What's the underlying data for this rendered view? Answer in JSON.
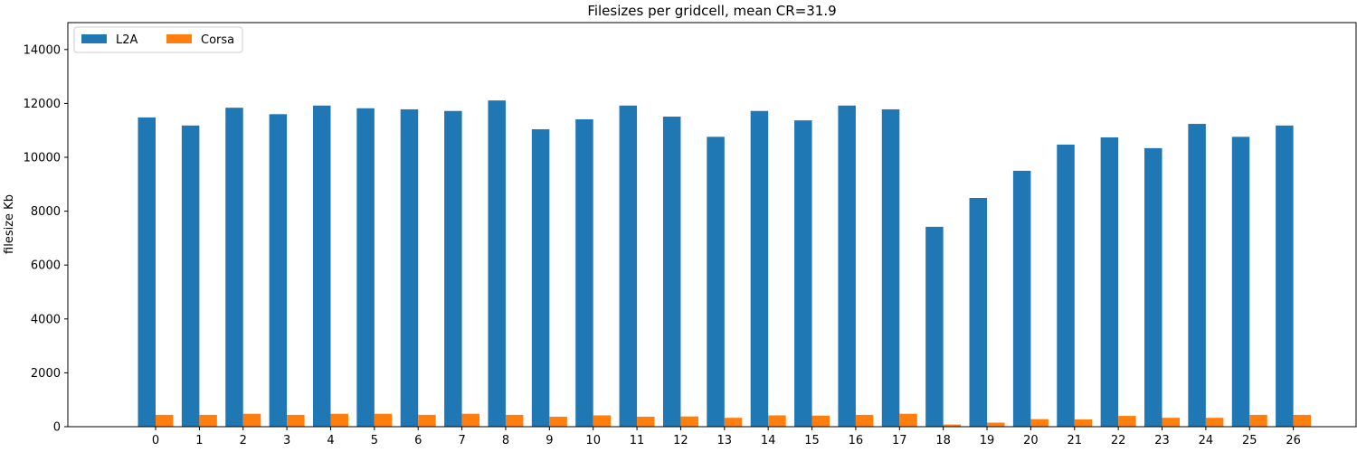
{
  "chart_data": {
    "type": "bar",
    "title": "Filesizes per gridcell, mean CR=31.9",
    "xlabel": "",
    "ylabel": "filesize Kb",
    "ylim": [
      0,
      15000
    ],
    "yticks": [
      0,
      2000,
      4000,
      6000,
      8000,
      10000,
      12000,
      14000
    ],
    "categories": [
      "0",
      "1",
      "2",
      "3",
      "4",
      "5",
      "6",
      "7",
      "8",
      "9",
      "10",
      "11",
      "12",
      "13",
      "14",
      "15",
      "16",
      "17",
      "18",
      "19",
      "20",
      "21",
      "22",
      "23",
      "24",
      "25",
      "26"
    ],
    "series": [
      {
        "name": "L2A",
        "color": "#1f77b4",
        "values": [
          11480,
          11180,
          11840,
          11600,
          11920,
          11820,
          11780,
          11720,
          12110,
          11040,
          11410,
          11920,
          11510,
          10760,
          11720,
          11370,
          11920,
          11780,
          7420,
          8490,
          9500,
          10470,
          10740,
          10340,
          11240,
          10760,
          11180
        ]
      },
      {
        "name": "Corsa",
        "color": "#ff7f0e",
        "values": [
          440,
          440,
          480,
          440,
          480,
          480,
          440,
          480,
          440,
          370,
          420,
          370,
          380,
          330,
          420,
          410,
          440,
          480,
          80,
          150,
          280,
          270,
          400,
          330,
          330,
          440,
          440
        ]
      }
    ],
    "grid": false,
    "legend": "top-left"
  }
}
